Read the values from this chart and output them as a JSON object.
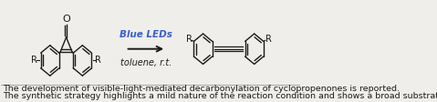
{
  "bg_color": "#f0eeea",
  "text_line1": "The development of visible-light-mediated decarbonylation of cyclopropenones is reported.",
  "text_line2": "The synthetic strategy highlights a mild nature of the reaction condition and shows a broad substrate scope.",
  "text_fontsize": 6.8,
  "text_color": "#1a1a1a",
  "arrow_label_blue": "Blue LEDs",
  "arrow_label_italic": "toluene, r.t.",
  "arrow_color": "#1a1a1a",
  "blue_color": "#3a5fcd",
  "lw": 1.0
}
